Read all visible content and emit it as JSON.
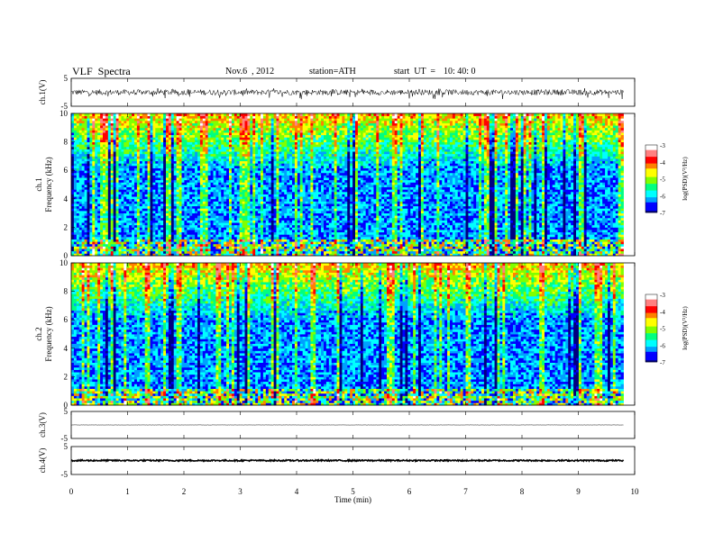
{
  "header": {
    "title": "VLF  Spectra",
    "date": "Nov.6  , 2012",
    "station": "station=ATH",
    "start_label": "start  UT  =",
    "start_value": "10: 40: 0"
  },
  "colors": {
    "background": "#ffffff",
    "frame": "#000000",
    "colormap": [
      "#000080",
      "#0000ff",
      "#00a0ff",
      "#00ffff",
      "#00ff80",
      "#80ff00",
      "#ffff00",
      "#ff8000",
      "#ff0000",
      "#ff8080",
      "#ffffff"
    ]
  },
  "chart_data": [
    {
      "type": "line",
      "panel": "ch1-waveform",
      "ylabel": "ch.1(V)",
      "ylim": [
        -5,
        5
      ],
      "y_ticks": [
        "5",
        "-5"
      ],
      "xlim": [
        0,
        10
      ],
      "description_series": {
        "mean": 0,
        "amplitude_range": [
          -2.5,
          1.5
        ]
      }
    },
    {
      "type": "heatmap",
      "panel": "ch1-spectrogram",
      "ylabel_lines": [
        "ch.1",
        "Frequency  (kHz)"
      ],
      "ylim": [
        0,
        10
      ],
      "y_ticks": [
        "0",
        "2",
        "4",
        "6",
        "8",
        "10"
      ],
      "xlim": [
        0,
        10
      ],
      "data_extent_min": [
        0,
        9.8
      ],
      "colorbar": {
        "label": "log(PSD)(V²/Hz)",
        "range": [
          -7,
          -3
        ],
        "ticks": [
          "-3",
          "-4",
          "-5",
          "-6",
          "-7"
        ]
      }
    },
    {
      "type": "heatmap",
      "panel": "ch2-spectrogram",
      "ylabel_lines": [
        "ch.2",
        "Frequency  (kHz)"
      ],
      "ylim": [
        0,
        10
      ],
      "y_ticks": [
        "0",
        "2",
        "4",
        "6",
        "8",
        "10"
      ],
      "xlim": [
        0,
        10
      ],
      "data_extent_min": [
        0,
        9.8
      ],
      "colorbar": {
        "label": "log(PSD)(V²/Hz)",
        "range": [
          -7,
          -3
        ],
        "ticks": [
          "-3",
          "-4",
          "-5",
          "-6",
          "-7"
        ]
      }
    },
    {
      "type": "line",
      "panel": "ch3-waveform",
      "ylabel": "ch.3(V)",
      "ylim": [
        -5,
        5
      ],
      "y_ticks": [
        "5",
        "-5"
      ],
      "xlim": [
        0,
        10
      ],
      "description_series": {
        "mean": 0,
        "amplitude_range": [
          -0.1,
          0.1
        ]
      }
    },
    {
      "type": "line",
      "panel": "ch4-waveform",
      "ylabel": "ch.4(V)",
      "ylim": [
        -5,
        5
      ],
      "y_ticks": [
        "5",
        "-5"
      ],
      "xlim": [
        0,
        10
      ],
      "description_series": {
        "mean": 0,
        "amplitude_range": [
          -0.5,
          0.5
        ]
      }
    }
  ],
  "x_axis": {
    "label": "Time  (min)",
    "ticks": [
      "0",
      "1",
      "2",
      "3",
      "4",
      "5",
      "6",
      "7",
      "8",
      "9",
      "10"
    ]
  }
}
